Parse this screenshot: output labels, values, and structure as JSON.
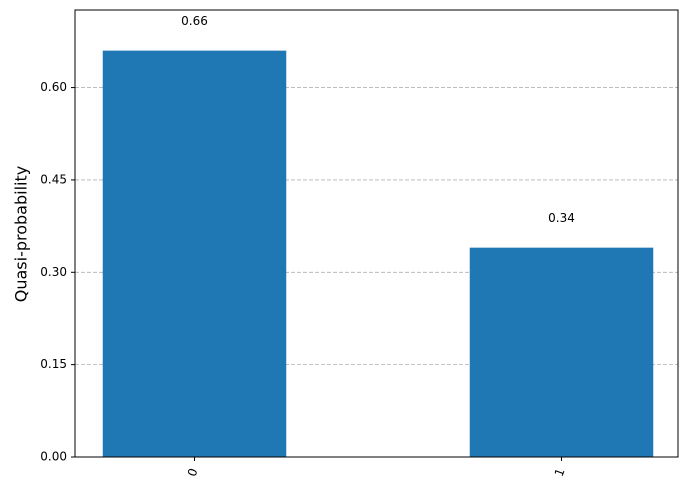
{
  "chart_data": {
    "type": "bar",
    "y_label": "Quasi-probability",
    "categories": [
      "0",
      "1"
    ],
    "values": [
      0.66,
      0.34
    ],
    "color": "#1f77b4",
    "ylim": [
      0,
      0.726
    ],
    "yticks": [
      {
        "value": 0,
        "label": "0.00"
      },
      0.15,
      {
        "value": 0.3,
        "label": "0.30"
      },
      0.45,
      {
        "value": 0.6,
        "label": "0.60"
      }
    ],
    "grid": true
  }
}
